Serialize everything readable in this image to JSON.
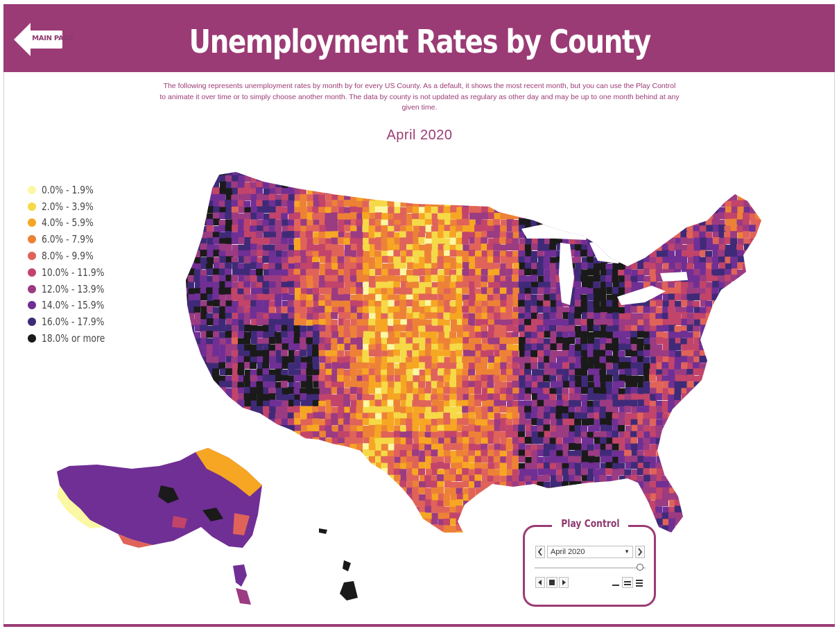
{
  "header": {
    "title": "Unemployment Rates by County",
    "back_label": "MAIN PAGE"
  },
  "description": "The following represents unemployment rates by month by for every US County.  As a default, it shows the most recent month, but you can use the Play Control to animate it over time or to simply choose another month.   The data by county is not updated as regulary as other day and may be up to one month behind at any given time.",
  "map": {
    "date_title": "April 2020",
    "legend": [
      {
        "label": "0.0% - 1.9%",
        "color": "#fbf7a3"
      },
      {
        "label": "2.0% - 3.9%",
        "color": "#f6d947"
      },
      {
        "label": "4.0% - 5.9%",
        "color": "#f6a623"
      },
      {
        "label": "6.0% - 7.9%",
        "color": "#ed8237"
      },
      {
        "label": "8.0% - 9.9%",
        "color": "#e0635a"
      },
      {
        "label": "10.0% - 11.9%",
        "color": "#c2446a"
      },
      {
        "label": "12.0% - 13.9%",
        "color": "#9b3b82"
      },
      {
        "label": "14.0% - 15.9%",
        "color": "#702f94"
      },
      {
        "label": "16.0% - 17.9%",
        "color": "#3f2a78"
      },
      {
        "label": "18.0% or more",
        "color": "#1a1a1a"
      }
    ]
  },
  "play_control": {
    "title": "Play Control",
    "selected_month": "April 2020",
    "prev_icon": "prev-icon",
    "next_icon": "next-icon",
    "slider_position": 0.95
  }
}
